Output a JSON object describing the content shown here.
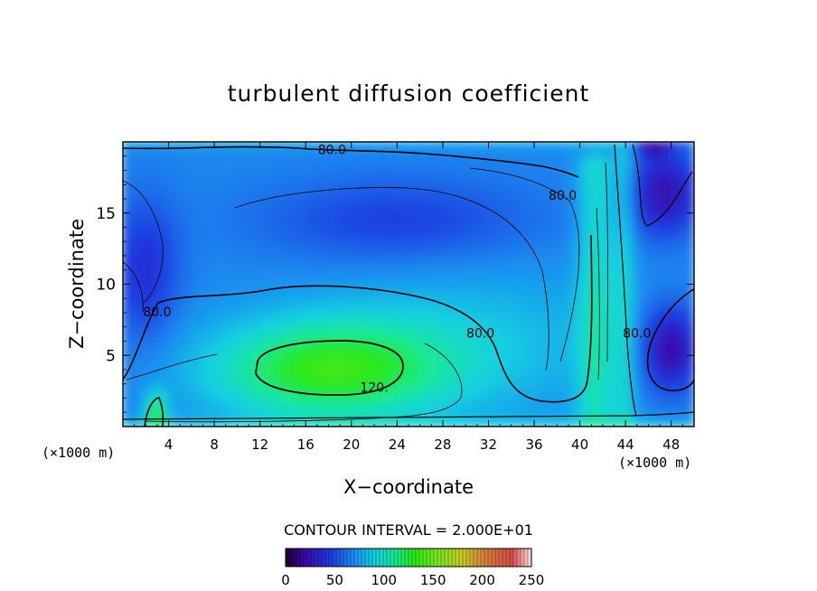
{
  "chart_data": {
    "type": "heatmap",
    "title": "turbulent diffusion coefficient",
    "xlabel": "X−coordinate",
    "ylabel": "Z−coordinate",
    "x_unit_label_left": "(×1000 m)",
    "x_unit_label_right": "(×1000 m)",
    "xlim": [
      0,
      50
    ],
    "ylim": [
      0,
      20
    ],
    "x_ticks": [
      4,
      8,
      12,
      16,
      20,
      24,
      28,
      32,
      36,
      40,
      44,
      48
    ],
    "y_ticks": [
      5,
      10,
      15
    ],
    "contour_interval_text": "CONTOUR INTERVAL = 2.000E+01",
    "contour_interval": 20,
    "contour_labels": [
      {
        "text": "80.0",
        "x": 18.3,
        "z": 19.4
      },
      {
        "text": "80.0",
        "x": 38.5,
        "z": 16.2
      },
      {
        "text": "80.0",
        "x": 3.0,
        "z": 8.0
      },
      {
        "text": "80.0",
        "x": 31.3,
        "z": 6.5
      },
      {
        "text": "80.0",
        "x": 45.0,
        "z": 6.5
      },
      {
        "text": "120.",
        "x": 22.0,
        "z": 2.7
      }
    ],
    "colorbar": {
      "min": 0,
      "max": 250,
      "ticks": [
        0,
        50,
        100,
        150,
        200,
        250
      ]
    },
    "colormap_stops": [
      {
        "v": 0,
        "color": "#1a0030"
      },
      {
        "v": 20,
        "color": "#3b0aa8"
      },
      {
        "v": 45,
        "color": "#1e3ae0"
      },
      {
        "v": 70,
        "color": "#1a8ff0"
      },
      {
        "v": 90,
        "color": "#14d0e0"
      },
      {
        "v": 110,
        "color": "#1ae89a"
      },
      {
        "v": 130,
        "color": "#28e81a"
      },
      {
        "v": 155,
        "color": "#7ae81e"
      },
      {
        "v": 180,
        "color": "#c8c828"
      },
      {
        "v": 205,
        "color": "#d87a3a"
      },
      {
        "v": 230,
        "color": "#d84a4a"
      },
      {
        "v": 250,
        "color": "#ffe0e0"
      }
    ]
  }
}
